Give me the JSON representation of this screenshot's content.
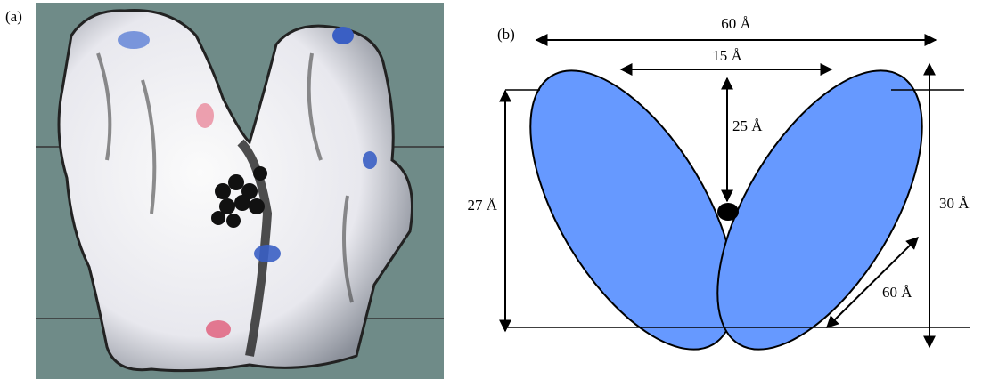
{
  "panel_a": {
    "label": "(a)"
  },
  "panel_b": {
    "label": "(b)",
    "dimensions": {
      "top_width": "60 Å",
      "gap_width": "15 Å",
      "cleft_depth": "25 Å",
      "left_height": "27 Å",
      "right_height": "30 Å",
      "lobe_length": "60 Å"
    }
  }
}
